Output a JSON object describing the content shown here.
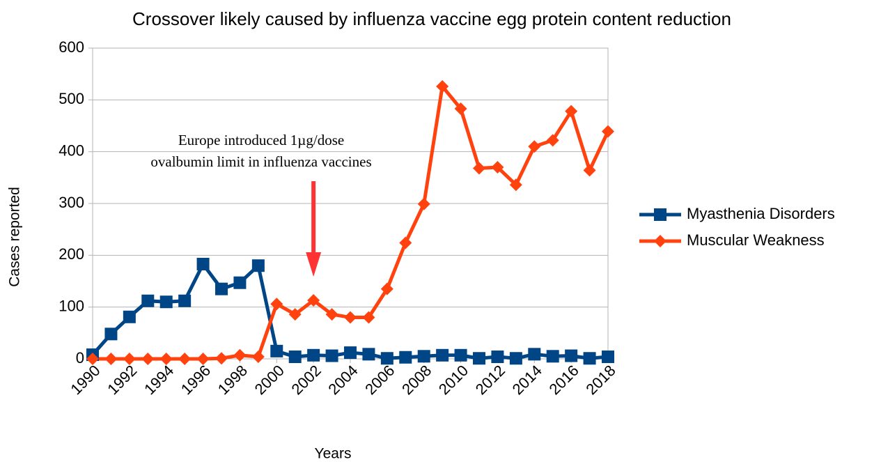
{
  "chart_data": {
    "type": "line",
    "title": "Crossover likely caused by influenza vaccine egg protein content reduction",
    "xlabel": "Years",
    "ylabel": "Cases reported",
    "annotation": [
      "Europe introduced 1µg/dose",
      "ovalbumin limit in influenza vaccines"
    ],
    "annotation_x": 2002,
    "x": [
      1990,
      1991,
      1992,
      1993,
      1994,
      1995,
      1996,
      1997,
      1998,
      1999,
      2000,
      2001,
      2002,
      2003,
      2004,
      2005,
      2006,
      2007,
      2008,
      2009,
      2010,
      2011,
      2012,
      2013,
      2014,
      2015,
      2016,
      2017,
      2018
    ],
    "series": [
      {
        "name": "Myasthenia Disorders",
        "color": "#004586",
        "marker": "square",
        "values": [
          8,
          48,
          81,
          112,
          110,
          112,
          183,
          135,
          147,
          180,
          15,
          4,
          7,
          6,
          12,
          9,
          1,
          3,
          5,
          7,
          7,
          1,
          4,
          1,
          9,
          5,
          6,
          1,
          4
        ]
      },
      {
        "name": "Muscular Weakness",
        "color": "#ff420e",
        "marker": "diamond",
        "values": [
          0,
          0,
          0,
          0,
          0,
          0,
          0,
          1,
          7,
          4,
          106,
          86,
          113,
          86,
          80,
          80,
          135,
          224,
          299,
          526,
          483,
          368,
          370,
          336,
          410,
          422,
          478,
          364,
          439
        ]
      }
    ],
    "xlim": [
      1990,
      2018
    ],
    "xticks": [
      1990,
      1992,
      1994,
      1996,
      1998,
      2000,
      2002,
      2004,
      2006,
      2008,
      2010,
      2012,
      2014,
      2016,
      2018
    ],
    "ylim": [
      0,
      600
    ],
    "yticks": [
      0,
      100,
      200,
      300,
      400,
      500,
      600
    ],
    "grid": true,
    "legend": "right"
  }
}
